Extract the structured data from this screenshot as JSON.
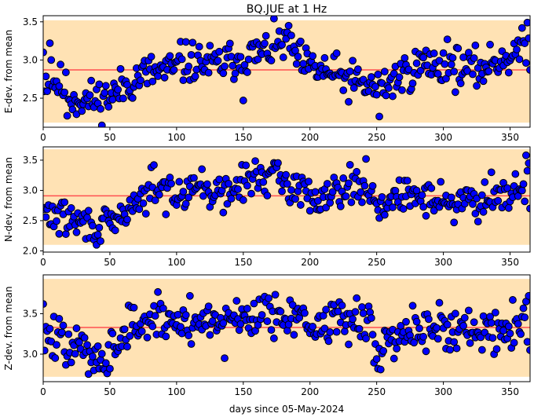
{
  "title": "BQ.JUE at 1 Hz",
  "xlabel": "days since 05-May-2024",
  "colors": {
    "band": "#ffe2b4",
    "mean_line": "#ff5050",
    "marker_face": "#0000ff",
    "marker_edge": "#000000"
  },
  "chart_data": [
    {
      "type": "scatter",
      "ylabel": "E-dev. from mean",
      "xlim": [
        0,
        365
      ],
      "ylim": [
        2.12,
        3.58
      ],
      "x_ticks": [
        0,
        50,
        100,
        150,
        200,
        250,
        300,
        350
      ],
      "y_ticks": [
        2.5,
        3.0,
        3.5
      ],
      "band": [
        2.18,
        3.52
      ],
      "mean": 2.87,
      "seed": 11,
      "trend": [
        [
          0,
          2.76
        ],
        [
          12,
          2.7
        ],
        [
          22,
          2.5
        ],
        [
          35,
          2.47
        ],
        [
          50,
          2.52
        ],
        [
          60,
          2.65
        ],
        [
          75,
          2.82
        ],
        [
          90,
          2.85
        ],
        [
          100,
          2.88
        ],
        [
          110,
          2.98
        ],
        [
          130,
          2.93
        ],
        [
          150,
          3.05
        ],
        [
          165,
          3.1
        ],
        [
          182,
          3.25
        ],
        [
          195,
          2.92
        ],
        [
          215,
          2.83
        ],
        [
          235,
          2.7
        ],
        [
          252,
          2.62
        ],
        [
          268,
          2.8
        ],
        [
          285,
          2.95
        ],
        [
          305,
          2.93
        ],
        [
          325,
          2.86
        ],
        [
          340,
          3.0
        ],
        [
          352,
          3.07
        ],
        [
          365,
          3.15
        ]
      ],
      "noise": 0.13,
      "outliers": [
        [
          0,
          3.1
        ],
        [
          5,
          3.22
        ],
        [
          6,
          3.0
        ],
        [
          18,
          2.27
        ],
        [
          103,
          3.24
        ],
        [
          150,
          2.47
        ],
        [
          183,
          3.36
        ],
        [
          252,
          2.26
        ],
        [
          303,
          3.27
        ],
        [
          356,
          3.26
        ],
        [
          360,
          3.25
        ],
        [
          363,
          3.49
        ],
        [
          365,
          2.87
        ]
      ]
    },
    {
      "type": "scatter",
      "ylabel": "N-dev. from mean",
      "xlim": [
        0,
        365
      ],
      "ylim": [
        1.98,
        3.72
      ],
      "x_ticks": [
        0,
        50,
        100,
        150,
        200,
        250,
        300,
        350
      ],
      "y_ticks": [
        2.0,
        2.5,
        3.0,
        3.5
      ],
      "band": [
        2.1,
        3.68
      ],
      "mean": 2.91,
      "seed": 29,
      "trend": [
        [
          0,
          2.62
        ],
        [
          15,
          2.55
        ],
        [
          30,
          2.45
        ],
        [
          45,
          2.4
        ],
        [
          55,
          2.45
        ],
        [
          65,
          2.75
        ],
        [
          85,
          2.95
        ],
        [
          100,
          3.0
        ],
        [
          115,
          3.1
        ],
        [
          135,
          2.9
        ],
        [
          155,
          3.2
        ],
        [
          170,
          3.25
        ],
        [
          188,
          3.05
        ],
        [
          205,
          2.88
        ],
        [
          225,
          3.1
        ],
        [
          240,
          3.05
        ],
        [
          255,
          2.75
        ],
        [
          270,
          2.9
        ],
        [
          290,
          2.9
        ],
        [
          310,
          2.8
        ],
        [
          330,
          2.85
        ],
        [
          345,
          3.0
        ],
        [
          365,
          3.05
        ]
      ],
      "noise": 0.14,
      "outliers": [
        [
          40,
          2.1
        ],
        [
          81,
          3.38
        ],
        [
          83,
          3.42
        ],
        [
          175,
          3.38
        ],
        [
          242,
          3.52
        ],
        [
          308,
          2.47
        ],
        [
          336,
          3.3
        ],
        [
          362,
          3.58
        ],
        [
          364,
          3.45
        ],
        [
          365,
          2.7
        ]
      ]
    },
    {
      "type": "scatter",
      "ylabel": "Z-dev. from mean",
      "xlim": [
        0,
        365
      ],
      "ylim": [
        2.66,
        3.98
      ],
      "x_ticks": [
        0,
        50,
        100,
        150,
        200,
        250,
        300,
        350
      ],
      "y_ticks": [
        3.0,
        3.5
      ],
      "band": [
        2.72,
        3.93
      ],
      "mean": 3.33,
      "seed": 47,
      "trend": [
        [
          0,
          3.25
        ],
        [
          15,
          3.12
        ],
        [
          30,
          3.05
        ],
        [
          45,
          3.0
        ],
        [
          55,
          3.1
        ],
        [
          65,
          3.35
        ],
        [
          85,
          3.42
        ],
        [
          100,
          3.4
        ],
        [
          120,
          3.4
        ],
        [
          140,
          3.45
        ],
        [
          165,
          3.5
        ],
        [
          185,
          3.55
        ],
        [
          200,
          3.3
        ],
        [
          220,
          3.45
        ],
        [
          235,
          3.45
        ],
        [
          250,
          3.15
        ],
        [
          270,
          3.25
        ],
        [
          290,
          3.38
        ],
        [
          310,
          3.28
        ],
        [
          330,
          3.3
        ],
        [
          350,
          3.35
        ],
        [
          365,
          3.45
        ]
      ],
      "noise": 0.14,
      "outliers": [
        [
          0,
          3.62
        ],
        [
          38,
          2.8
        ],
        [
          50,
          2.82
        ],
        [
          110,
          3.72
        ],
        [
          136,
          2.95
        ],
        [
          251,
          2.82
        ],
        [
          253,
          2.81
        ],
        [
          362,
          3.65
        ],
        [
          364,
          3.72
        ],
        [
          365,
          3.05
        ]
      ]
    }
  ]
}
